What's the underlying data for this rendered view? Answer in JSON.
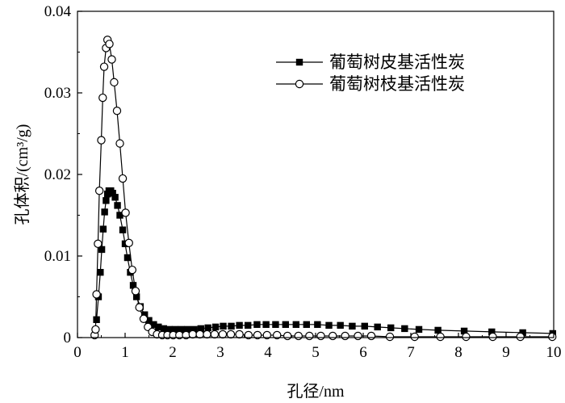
{
  "chart_data": {
    "type": "line",
    "xlabel": "孔径/nm",
    "ylabel": "孔体积/(cm³/g)",
    "xlim": [
      0,
      10
    ],
    "ylim": [
      0,
      0.04
    ],
    "xticks": [
      "0",
      "1",
      "2",
      "3",
      "4",
      "5",
      "6",
      "7",
      "8",
      "9",
      "10"
    ],
    "yticks": [
      "0",
      "0.01",
      "0.02",
      "0.03",
      "0.04"
    ],
    "grid": false,
    "legend_position": "top-right",
    "series": [
      {
        "name": "葡萄树皮基活性炭",
        "marker": "filled-square",
        "color": "#000000",
        "points": [
          [
            0.4,
            0.0022
          ],
          [
            0.44,
            0.005
          ],
          [
            0.48,
            0.008
          ],
          [
            0.51,
            0.0108
          ],
          [
            0.54,
            0.0133
          ],
          [
            0.57,
            0.0154
          ],
          [
            0.6,
            0.0168
          ],
          [
            0.63,
            0.0176
          ],
          [
            0.66,
            0.018
          ],
          [
            0.7,
            0.018
          ],
          [
            0.74,
            0.0177
          ],
          [
            0.79,
            0.0172
          ],
          [
            0.84,
            0.0162
          ],
          [
            0.89,
            0.015
          ],
          [
            0.95,
            0.0132
          ],
          [
            1.0,
            0.0115
          ],
          [
            1.05,
            0.0098
          ],
          [
            1.11,
            0.008
          ],
          [
            1.17,
            0.0064
          ],
          [
            1.24,
            0.005
          ],
          [
            1.32,
            0.0038
          ],
          [
            1.41,
            0.0028
          ],
          [
            1.5,
            0.0021
          ],
          [
            1.6,
            0.0016
          ],
          [
            1.7,
            0.0013
          ],
          [
            1.81,
            0.0011
          ],
          [
            1.93,
            0.001
          ],
          [
            2.05,
            0.001
          ],
          [
            2.18,
            0.001
          ],
          [
            2.31,
            0.001
          ],
          [
            2.45,
            0.001
          ],
          [
            2.59,
            0.0011
          ],
          [
            2.74,
            0.0012
          ],
          [
            2.9,
            0.0013
          ],
          [
            3.06,
            0.0014
          ],
          [
            3.23,
            0.0014
          ],
          [
            3.4,
            0.0015
          ],
          [
            3.58,
            0.0015
          ],
          [
            3.77,
            0.0016
          ],
          [
            3.96,
            0.0016
          ],
          [
            4.16,
            0.0016
          ],
          [
            4.37,
            0.0016
          ],
          [
            4.59,
            0.0016
          ],
          [
            4.81,
            0.0016
          ],
          [
            5.04,
            0.0016
          ],
          [
            5.28,
            0.0015
          ],
          [
            5.52,
            0.0015
          ],
          [
            5.77,
            0.0014
          ],
          [
            6.03,
            0.0014
          ],
          [
            6.3,
            0.0013
          ],
          [
            6.58,
            0.0012
          ],
          [
            6.87,
            0.0011
          ],
          [
            7.17,
            0.001
          ],
          [
            7.57,
            0.0009
          ],
          [
            8.12,
            0.0008
          ],
          [
            8.7,
            0.0007
          ],
          [
            9.35,
            0.0006
          ],
          [
            9.98,
            0.0005
          ]
        ]
      },
      {
        "name": "葡萄树枝基活性炭",
        "marker": "open-circle",
        "color": "#000000",
        "points": [
          [
            0.36,
            0.0003
          ],
          [
            0.38,
            0.001
          ],
          [
            0.4,
            0.0053
          ],
          [
            0.43,
            0.0115
          ],
          [
            0.46,
            0.018
          ],
          [
            0.5,
            0.0242
          ],
          [
            0.53,
            0.0294
          ],
          [
            0.56,
            0.0332
          ],
          [
            0.6,
            0.0355
          ],
          [
            0.63,
            0.0365
          ],
          [
            0.67,
            0.036
          ],
          [
            0.72,
            0.0341
          ],
          [
            0.77,
            0.0313
          ],
          [
            0.83,
            0.0278
          ],
          [
            0.89,
            0.0238
          ],
          [
            0.95,
            0.0195
          ],
          [
            1.01,
            0.0153
          ],
          [
            1.08,
            0.0116
          ],
          [
            1.15,
            0.0083
          ],
          [
            1.22,
            0.0057
          ],
          [
            1.3,
            0.0037
          ],
          [
            1.39,
            0.0023
          ],
          [
            1.48,
            0.0013
          ],
          [
            1.57,
            0.0007
          ],
          [
            1.67,
            0.0004
          ],
          [
            1.78,
            0.0003
          ],
          [
            1.89,
            0.0003
          ],
          [
            2.01,
            0.0003
          ],
          [
            2.14,
            0.0003
          ],
          [
            2.28,
            0.0003
          ],
          [
            2.42,
            0.0004
          ],
          [
            2.57,
            0.0004
          ],
          [
            2.72,
            0.0004
          ],
          [
            2.88,
            0.0004
          ],
          [
            3.05,
            0.0004
          ],
          [
            3.22,
            0.0004
          ],
          [
            3.4,
            0.0004
          ],
          [
            3.59,
            0.0003
          ],
          [
            3.78,
            0.0003
          ],
          [
            3.98,
            0.0003
          ],
          [
            4.19,
            0.0003
          ],
          [
            4.41,
            0.0002
          ],
          [
            4.64,
            0.0002
          ],
          [
            4.87,
            0.0002
          ],
          [
            5.11,
            0.0002
          ],
          [
            5.36,
            0.0002
          ],
          [
            5.62,
            0.0002
          ],
          [
            5.89,
            0.0002
          ],
          [
            6.17,
            0.0002
          ],
          [
            6.56,
            0.0001
          ],
          [
            7.08,
            0.0001
          ],
          [
            7.62,
            0.0001
          ],
          [
            8.16,
            0.0001
          ],
          [
            8.72,
            0.0001
          ],
          [
            9.3,
            0.0001
          ],
          [
            9.97,
            0.0001
          ]
        ]
      }
    ]
  }
}
